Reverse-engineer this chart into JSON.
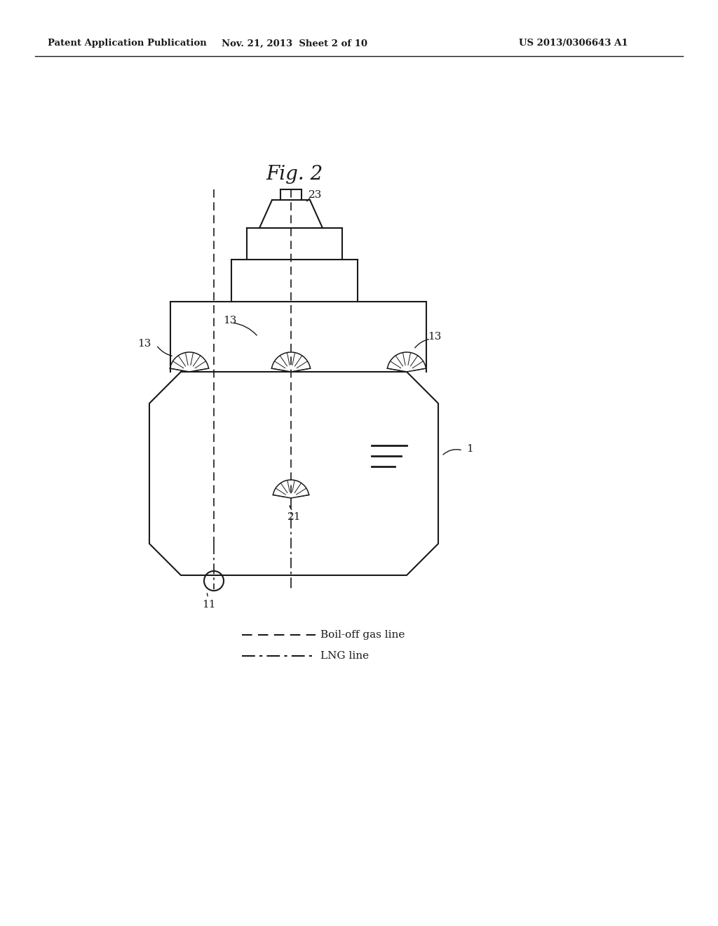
{
  "bg_color": "#ffffff",
  "line_color": "#1a1a1a",
  "header_left": "Patent Application Publication",
  "header_mid": "Nov. 21, 2013  Sheet 2 of 10",
  "header_right": "US 2013/0306643 A1",
  "fig_title": "Fig. 2",
  "legend_dashed": "Boil-off gas line",
  "legend_dashdot": "LNG line"
}
